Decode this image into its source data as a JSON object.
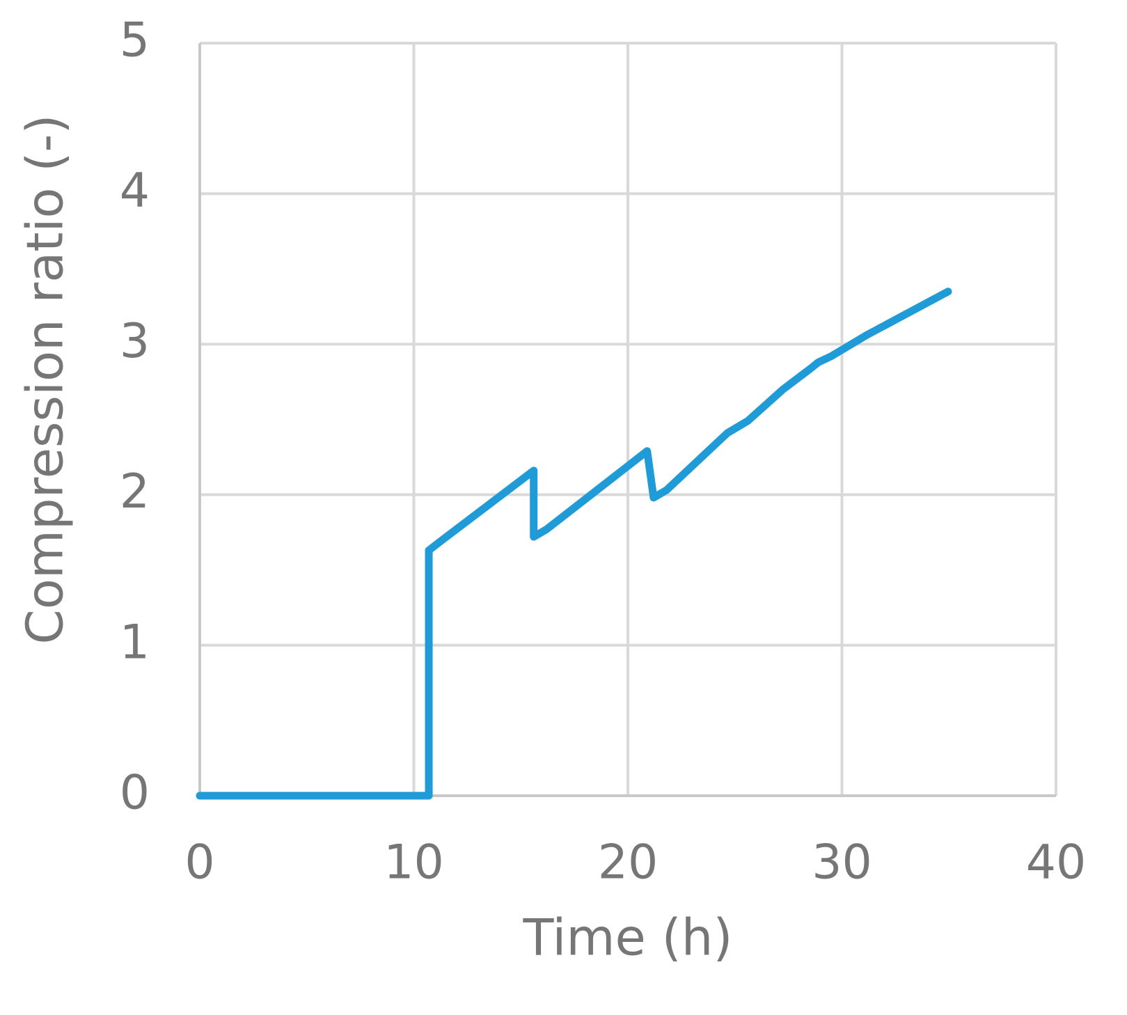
{
  "chart_data": {
    "type": "line",
    "x_label": "Time (h)",
    "y_label": "Compression ratio (-)",
    "x": [
      0,
      10.7,
      10.7,
      11.15,
      15.6,
      15.6,
      16.2,
      20.9,
      21.2,
      21.8,
      24.65,
      25.6,
      27.25,
      28.55,
      28.9,
      29.5,
      31.15,
      34.96
    ],
    "series": [
      {
        "name": "Compression ratio",
        "color": "#1f9bd7",
        "values": [
          0,
          0,
          1.63,
          1.68,
          2.16,
          1.72,
          1.77,
          2.29,
          1.98,
          2.03,
          2.41,
          2.49,
          2.7,
          2.84,
          2.88,
          2.92,
          3.06,
          3.35
        ]
      }
    ],
    "xlim": [
      0,
      40
    ],
    "xticks": [
      0,
      10,
      20,
      30,
      40
    ],
    "ylim": [
      0,
      5
    ],
    "yticks": [
      0,
      1,
      2,
      3,
      4,
      5
    ],
    "grid": true
  }
}
